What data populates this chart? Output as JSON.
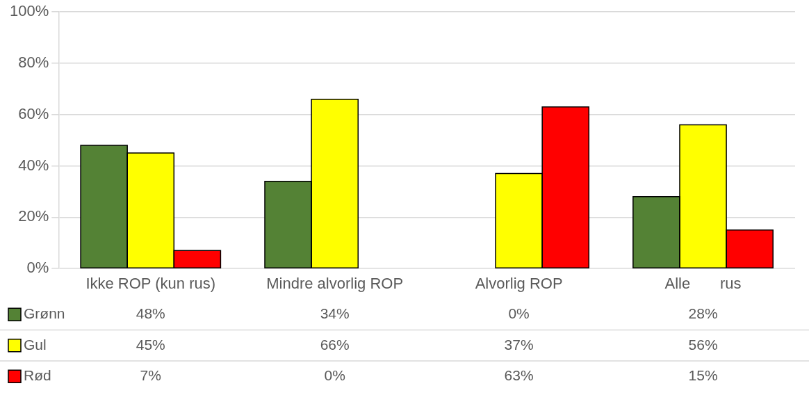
{
  "chart_data": {
    "type": "bar",
    "categories": [
      "Ikke ROP (kun rus)",
      "Mindre alvorlig ROP",
      "Alvorlig ROP",
      "Alle       rus"
    ],
    "series": [
      {
        "name": "Grønn",
        "color": "#548235",
        "values": [
          48,
          34,
          0,
          28
        ],
        "value_labels": [
          "48%",
          "34%",
          "0%",
          "28%"
        ]
      },
      {
        "name": "Gul",
        "color": "#ffff00",
        "values": [
          45,
          66,
          37,
          56
        ],
        "value_labels": [
          "45%",
          "66%",
          "37%",
          "56%"
        ]
      },
      {
        "name": "Rød",
        "color": "#ff0000",
        "values": [
          7,
          0,
          63,
          15
        ],
        "value_labels": [
          "7%",
          "0%",
          "63%",
          "15%"
        ]
      }
    ],
    "ylim": [
      0,
      100
    ],
    "yticks": [
      {
        "value": 0,
        "label": "0%"
      },
      {
        "value": 20,
        "label": "20%"
      },
      {
        "value": 40,
        "label": "40%"
      },
      {
        "value": 60,
        "label": "60%"
      },
      {
        "value": 80,
        "label": "80%"
      },
      {
        "value": 100,
        "label": "100%"
      }
    ],
    "grid": "y",
    "legend": "bottom left"
  }
}
